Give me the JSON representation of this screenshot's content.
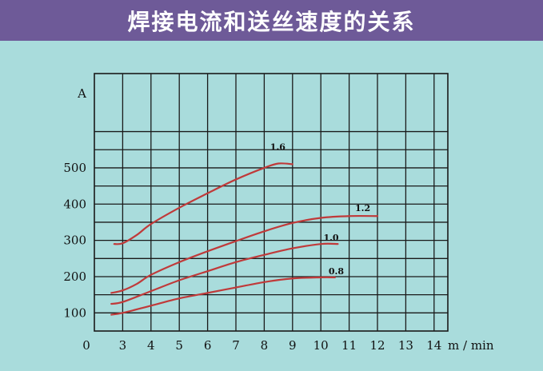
{
  "header": {
    "title": "焊接电流和送丝速度的关系"
  },
  "colors": {
    "banner": "#6e5a98",
    "background": "#a9dcdc",
    "grid": "#1a1a1a",
    "curve": "#c03a3a"
  },
  "chart_data": {
    "type": "line",
    "title": "焊接电流和送丝速度的关系",
    "xlabel": "m / min",
    "ylabel": "A",
    "xlim": [
      0,
      15
    ],
    "ylim": [
      50,
      650
    ],
    "grid": true,
    "x_ticks": [
      "0",
      "3",
      "4",
      "5",
      "6",
      "7",
      "8",
      "9",
      "10",
      "11",
      "12",
      "13",
      "14"
    ],
    "y_ticks": [
      "100",
      "200",
      "300",
      "400",
      "500"
    ],
    "series": [
      {
        "name": "1.6",
        "x": [
          2.7,
          3.0,
          3.5,
          4,
          5,
          6,
          7,
          8,
          8.5,
          9
        ],
        "y": [
          290,
          292,
          315,
          345,
          390,
          430,
          468,
          500,
          512,
          510
        ]
      },
      {
        "name": "1.2",
        "x": [
          2.6,
          3.0,
          3.5,
          4,
          5,
          6,
          7,
          8,
          9,
          10,
          11,
          12
        ],
        "y": [
          155,
          162,
          180,
          205,
          240,
          270,
          298,
          325,
          348,
          362,
          367,
          367
        ]
      },
      {
        "name": "1.0",
        "x": [
          2.6,
          3.0,
          4,
          5,
          6,
          7,
          8,
          9,
          10,
          10.6
        ],
        "y": [
          125,
          130,
          160,
          190,
          215,
          240,
          260,
          278,
          290,
          290
        ]
      },
      {
        "name": "0.8",
        "x": [
          2.6,
          3.0,
          4,
          5,
          6,
          7,
          8,
          9,
          10,
          10.5
        ],
        "y": [
          95,
          100,
          120,
          140,
          155,
          170,
          185,
          195,
          198,
          198
        ]
      }
    ]
  }
}
